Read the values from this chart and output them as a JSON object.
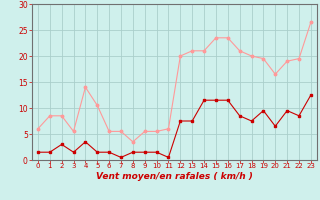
{
  "x": [
    0,
    1,
    2,
    3,
    4,
    5,
    6,
    7,
    8,
    9,
    10,
    11,
    12,
    13,
    14,
    15,
    16,
    17,
    18,
    19,
    20,
    21,
    22,
    23
  ],
  "avg_wind": [
    1.5,
    1.5,
    3.0,
    1.5,
    3.5,
    1.5,
    1.5,
    0.5,
    1.5,
    1.5,
    1.5,
    0.5,
    7.5,
    7.5,
    11.5,
    11.5,
    11.5,
    8.5,
    7.5,
    9.5,
    6.5,
    9.5,
    8.5,
    12.5
  ],
  "gust_wind": [
    6.0,
    8.5,
    8.5,
    5.5,
    14.0,
    10.5,
    5.5,
    5.5,
    3.5,
    5.5,
    5.5,
    6.0,
    20.0,
    21.0,
    21.0,
    23.5,
    23.5,
    21.0,
    20.0,
    19.5,
    16.5,
    19.0,
    19.5,
    26.5
  ],
  "bg_color": "#cff0ec",
  "grid_color": "#aacfcb",
  "avg_color": "#cc0000",
  "gust_color": "#ff9999",
  "xlabel": "Vent moyen/en rafales ( km/h )",
  "ylabel": "",
  "xlim": [
    -0.5,
    23.5
  ],
  "ylim": [
    0,
    30
  ],
  "yticks": [
    0,
    5,
    10,
    15,
    20,
    25,
    30
  ],
  "xticks": [
    0,
    1,
    2,
    3,
    4,
    5,
    6,
    7,
    8,
    9,
    10,
    11,
    12,
    13,
    14,
    15,
    16,
    17,
    18,
    19,
    20,
    21,
    22,
    23
  ]
}
